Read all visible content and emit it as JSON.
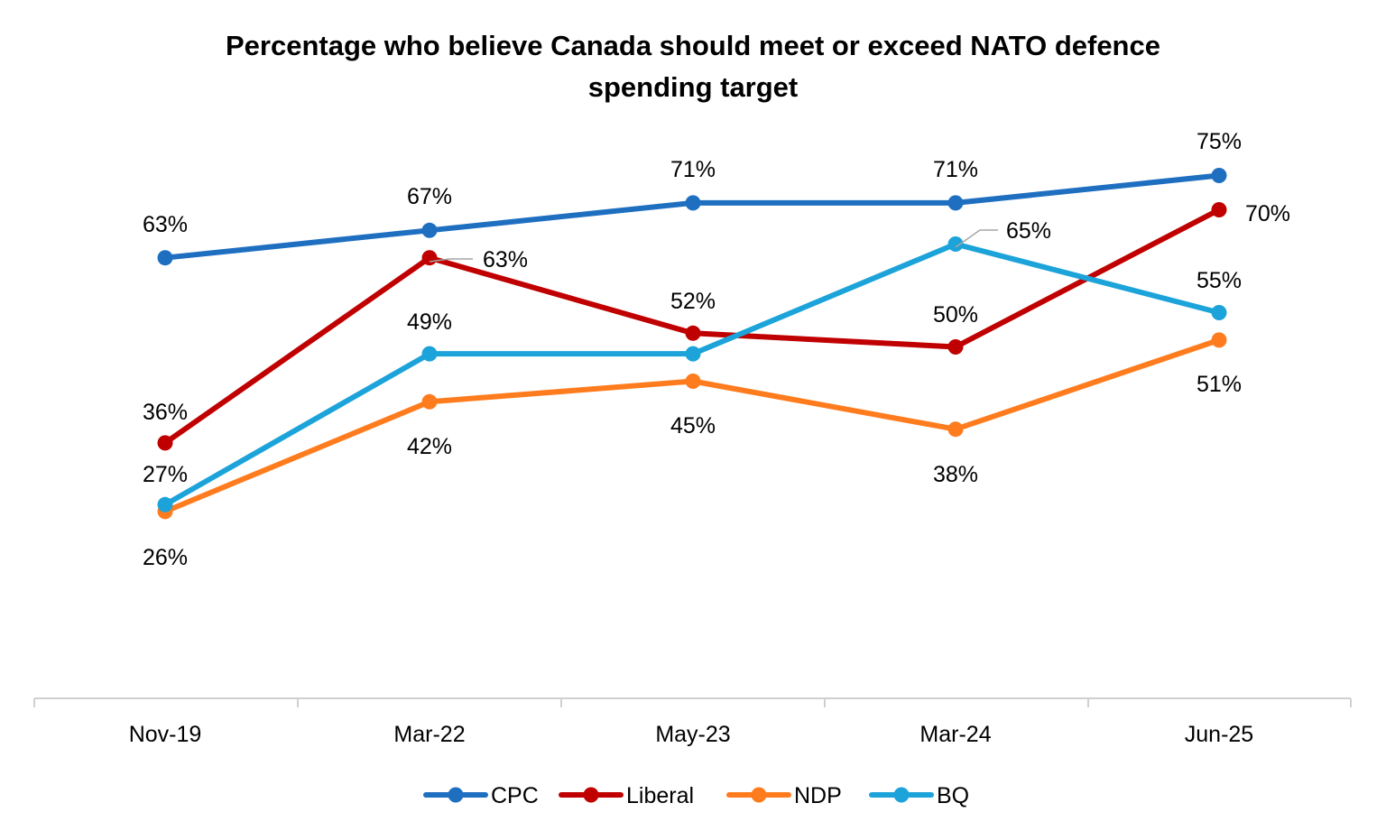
{
  "chart_data": {
    "type": "line",
    "title_line1": "Percentage who believe Canada should meet or exceed NATO defence",
    "title_line2": "spending target",
    "categories": [
      "Nov-19",
      "Mar-22",
      "May-23",
      "Mar-24",
      "Jun-25"
    ],
    "ylim": [
      0,
      100
    ],
    "grid": false,
    "legend_position": "bottom",
    "series": [
      {
        "name": "CPC",
        "color": "#1F6FC1",
        "values": [
          63,
          67,
          71,
          71,
          75
        ],
        "labels": [
          "63%",
          "67%",
          "71%",
          "71%",
          "75%"
        ]
      },
      {
        "name": "Liberal",
        "color": "#C00000",
        "values": [
          36,
          63,
          52,
          50,
          70
        ],
        "labels": [
          "36%",
          "63%",
          "52%",
          "50%",
          "70%"
        ]
      },
      {
        "name": "NDP",
        "color": "#FF7C1E",
        "values": [
          26,
          42,
          45,
          38,
          51
        ],
        "labels": [
          "26%",
          "42%",
          "45%",
          "38%",
          "51%"
        ]
      },
      {
        "name": "BQ",
        "color": "#1CA3D9",
        "values": [
          27,
          49,
          49,
          65,
          55
        ],
        "labels": [
          "27%",
          "49%",
          "",
          "65%",
          "55%"
        ]
      }
    ]
  }
}
